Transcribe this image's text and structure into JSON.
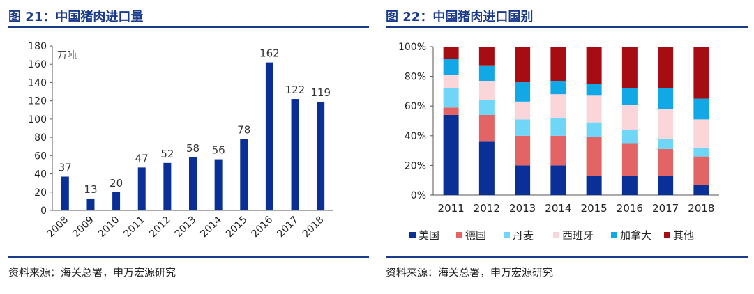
{
  "left": {
    "title": "图 21：中国猪肉进口量",
    "source": "资料来源：海关总署，申万宏源研究"
  },
  "right": {
    "title": "图 22：中国猪肉进口国别",
    "source": "资料来源：海关总署，申万宏源研究"
  },
  "colors": {
    "title": "#1a3a8a",
    "bar": "#0a2f96"
  },
  "chart_data": [
    {
      "type": "bar",
      "title": "中国猪肉进口量",
      "unit_label": "万吨",
      "categories": [
        "2008",
        "2009",
        "2010",
        "2011",
        "2012",
        "2013",
        "2014",
        "2015",
        "2016",
        "2017",
        "2018"
      ],
      "values": [
        37,
        13,
        20,
        47,
        52,
        58,
        56,
        78,
        162,
        122,
        119
      ],
      "ylim": [
        0,
        180
      ],
      "yticks": [
        0,
        20,
        40,
        60,
        80,
        100,
        120,
        140,
        160,
        180
      ],
      "grid": false
    },
    {
      "type": "bar",
      "stacked": true,
      "title": "中国猪肉进口国别",
      "categories": [
        "2011",
        "2012",
        "2013",
        "2014",
        "2015",
        "2016",
        "2017",
        "2018"
      ],
      "ylim": [
        0,
        100
      ],
      "yticks": [
        "0%",
        "20%",
        "40%",
        "60%",
        "80%",
        "100%"
      ],
      "series": [
        {
          "name": "美国",
          "color": "#0a2f96",
          "values": [
            54,
            36,
            20,
            20,
            13,
            13,
            13,
            7
          ]
        },
        {
          "name": "德国",
          "color": "#e36464",
          "values": [
            5,
            18,
            20,
            20,
            26,
            22,
            18,
            19
          ]
        },
        {
          "name": "丹麦",
          "color": "#6fd6f8",
          "values": [
            13,
            10,
            11,
            12,
            10,
            9,
            7,
            6
          ]
        },
        {
          "name": "西班牙",
          "color": "#fad6da",
          "values": [
            9,
            13,
            12,
            16,
            18,
            17,
            20,
            19
          ]
        },
        {
          "name": "加拿大",
          "color": "#12a8e6",
          "values": [
            11,
            10,
            13,
            9,
            8,
            11,
            14,
            14
          ]
        },
        {
          "name": "其他",
          "color": "#a50d12",
          "values": [
            8,
            13,
            24,
            23,
            25,
            28,
            28,
            35
          ]
        }
      ]
    }
  ]
}
